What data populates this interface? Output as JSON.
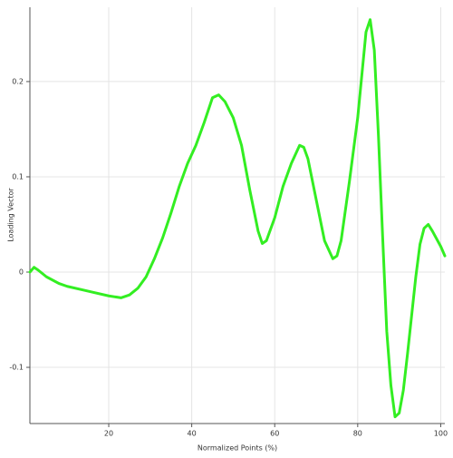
{
  "chart_data": {
    "type": "line",
    "x_label": "Normalized Points (%)",
    "y_label": "Loading Vector",
    "x": [
      1,
      2,
      3,
      5,
      8,
      10,
      14,
      16,
      20,
      23,
      25,
      27,
      29,
      31,
      33,
      35,
      37,
      39,
      41,
      43,
      45,
      46.5,
      48,
      50,
      52,
      54,
      56,
      57,
      58,
      60,
      62,
      64,
      66,
      67,
      68,
      70,
      72,
      74,
      75,
      76,
      78,
      80,
      82,
      83,
      84,
      85,
      86,
      87,
      88,
      89,
      90,
      91,
      92,
      94,
      95,
      96,
      97,
      98,
      100,
      101
    ],
    "series": [
      {
        "color": "#33ee22",
        "values": [
          0.0,
          0.005,
          0.002,
          -0.005,
          -0.012,
          -0.015,
          -0.019,
          -0.021,
          -0.025,
          -0.027,
          -0.024,
          -0.017,
          -0.005,
          0.014,
          0.036,
          0.062,
          0.09,
          0.114,
          0.133,
          0.157,
          0.183,
          0.186,
          0.179,
          0.162,
          0.133,
          0.086,
          0.043,
          0.03,
          0.033,
          0.057,
          0.09,
          0.114,
          0.133,
          0.131,
          0.119,
          0.076,
          0.033,
          0.014,
          0.017,
          0.033,
          0.095,
          0.162,
          0.252,
          0.265,
          0.233,
          0.143,
          0.038,
          -0.062,
          -0.119,
          -0.152,
          -0.148,
          -0.124,
          -0.086,
          -0.005,
          0.029,
          0.046,
          0.05,
          0.043,
          0.027,
          0.017
        ]
      }
    ],
    "xlim": [
      1,
      101
    ],
    "xticks": [
      20,
      40,
      60,
      80,
      100
    ],
    "ylim": [
      -0.159,
      0.278
    ],
    "yticks": [
      -0.1,
      0,
      0.1,
      0.2
    ],
    "grid": true
  }
}
